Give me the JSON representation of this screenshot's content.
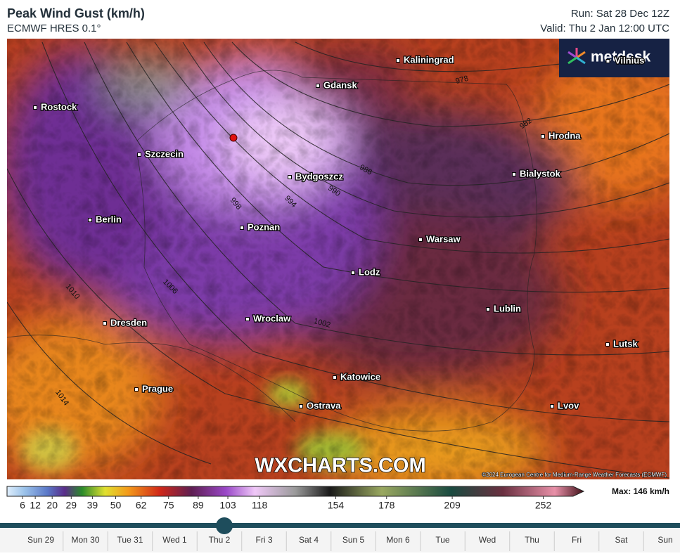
{
  "header": {
    "title": "Peak Wind Gust (km/h)",
    "subtitle": "ECMWF HRES 0.1°",
    "run": "Run: Sat 28 Dec 12Z",
    "valid": "Valid: Thu 2 Jan 12:00 UTC"
  },
  "map": {
    "cities": [
      "Kaliningrad",
      "Gdansk",
      "Rostock",
      "Hrodna",
      "Szczecin",
      "Bydgoszcz",
      "Bialystok",
      "Berlin",
      "Poznan",
      "Warsaw",
      "Lodz",
      "Lublin",
      "Dresden",
      "Wroclaw",
      "Lutsk",
      "Katowice",
      "Prague",
      "Ostrava",
      "Lvov",
      "Vilnius"
    ],
    "isobars": [
      978,
      982,
      986,
      990,
      994,
      998,
      1002,
      1006,
      1010,
      1014
    ],
    "logo": "metdesk",
    "watermark": "WXCHARTS.COM",
    "copyright": "©2024 European Centre for Medium-Range Weather Forecasts (ECMWF)"
  },
  "legend": {
    "ticks": [
      6,
      12,
      20,
      29,
      39,
      50,
      62,
      75,
      89,
      103,
      118,
      154,
      178,
      209,
      252
    ],
    "max": "Max: 146 km/h"
  },
  "timeline": {
    "days": [
      "Sun 29",
      "Mon 30",
      "Tue 31",
      "Wed 1",
      "Thu 2",
      "Fri 3",
      "Sat 4",
      "Sun 5",
      "Mon 6",
      "Tue",
      "Wed",
      "Thu",
      "Fri",
      "Sat",
      "Sun"
    ]
  }
}
